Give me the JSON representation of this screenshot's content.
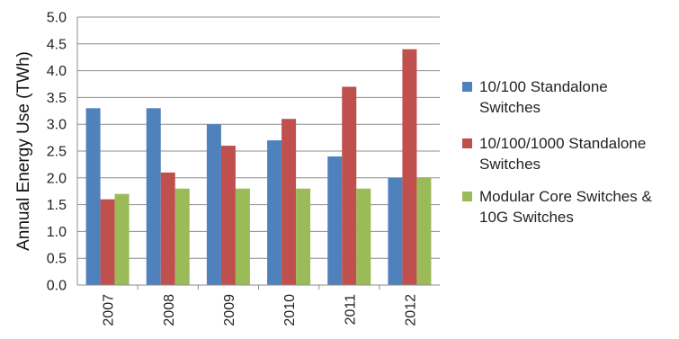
{
  "chart_data": {
    "type": "bar",
    "categories": [
      "2007",
      "2008",
      "2009",
      "2010",
      "2011",
      "2012"
    ],
    "series": [
      {
        "name": "10/100 Standalone Switches",
        "legend_lines": [
          "10/100 Standalone",
          "Switches"
        ],
        "color": "#4F81BD",
        "values": [
          3.3,
          3.3,
          3.0,
          2.7,
          2.4,
          2.0
        ]
      },
      {
        "name": "10/100/1000 Standalone Switches",
        "legend_lines": [
          "10/100/1000 Standalone",
          "Switches"
        ],
        "color": "#C0504D",
        "values": [
          1.6,
          2.1,
          2.6,
          3.1,
          3.7,
          4.4
        ]
      },
      {
        "name": "Modular Core Switches & 10G Switches",
        "legend_lines": [
          "Modular Core Switches &",
          "10G Switches"
        ],
        "color": "#9BBB59",
        "values": [
          1.7,
          1.8,
          1.8,
          1.8,
          1.8,
          2.0
        ]
      }
    ],
    "title": "",
    "xlabel": "",
    "ylabel": "Annual Energy Use (TWh)",
    "ylim": [
      0,
      5.0
    ],
    "yticks": [
      "0.0",
      "0.5",
      "1.0",
      "1.5",
      "2.0",
      "2.5",
      "3.0",
      "3.5",
      "4.0",
      "4.5",
      "5.0"
    ],
    "grid": "horizontal",
    "legend_position": "right",
    "x_tick_rotation": "vertical"
  }
}
